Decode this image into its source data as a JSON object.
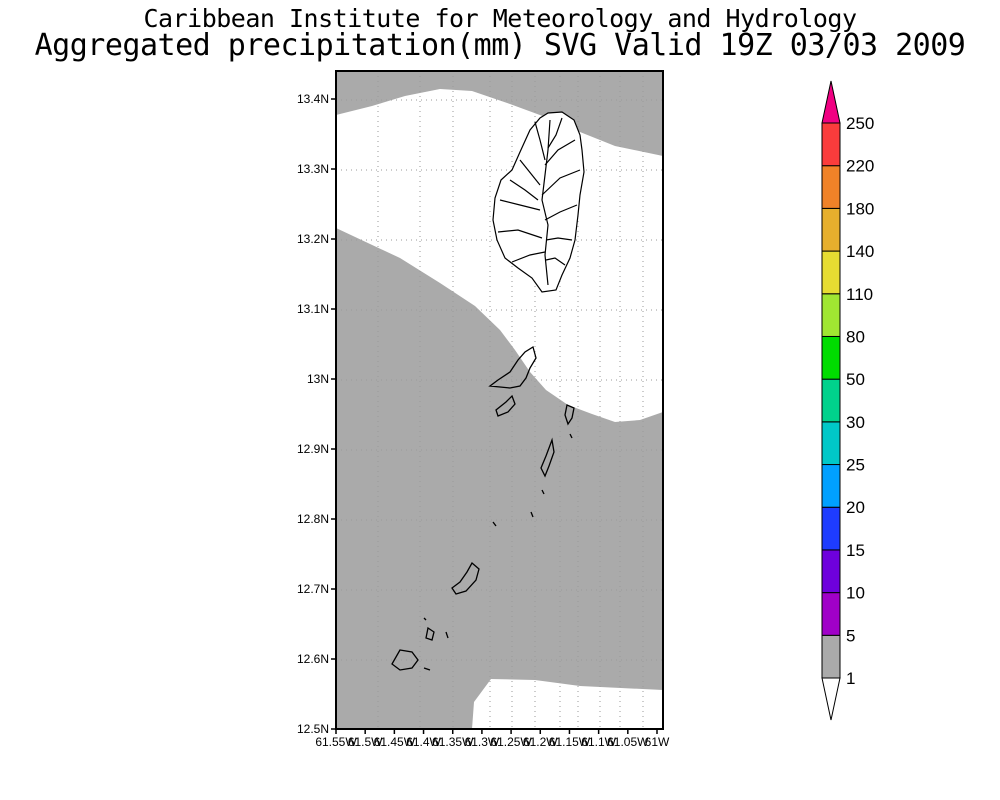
{
  "header": {
    "title": "Caribbean Institute for Meteorology and Hydrology",
    "subtitle": "Aggregated precipitation(mm) SVG Valid 19Z 03/03 2009"
  },
  "map": {
    "x_ticks": [
      "61.55W",
      "61.5W",
      "61.45W",
      "61.4W",
      "61.35W",
      "61.3W",
      "61.25W",
      "61.2W",
      "61.15W",
      "61.1W",
      "61.05W",
      "61W"
    ],
    "y_ticks": [
      "12.5N",
      "12.6N",
      "12.7N",
      "12.8N",
      "12.9N",
      "13N",
      "13.1N",
      "13.2N",
      "13.3N",
      "13.4N"
    ],
    "grid": "dotted",
    "shading": {
      "precip_color": "#aaaaaa",
      "precip_bin": "1-5",
      "dry_color": "#ffffff"
    }
  },
  "legend": {
    "bins": [
      {
        "label": "1",
        "color": "#aaaaaa"
      },
      {
        "label": "5",
        "color": "#a000c8"
      },
      {
        "label": "10",
        "color": "#6e00dc"
      },
      {
        "label": "15",
        "color": "#1e3cff"
      },
      {
        "label": "20",
        "color": "#00a0ff"
      },
      {
        "label": "25",
        "color": "#00c8c8"
      },
      {
        "label": "30",
        "color": "#00d28c"
      },
      {
        "label": "50",
        "color": "#00dc00"
      },
      {
        "label": "80",
        "color": "#a0e632"
      },
      {
        "label": "110",
        "color": "#e6dc32"
      },
      {
        "label": "140",
        "color": "#e6af2d"
      },
      {
        "label": "180",
        "color": "#f08228"
      },
      {
        "label": "220",
        "color": "#fa3c3c"
      },
      {
        "label": "250",
        "color": "#f00082"
      }
    ],
    "below_color": "#ffffff"
  }
}
